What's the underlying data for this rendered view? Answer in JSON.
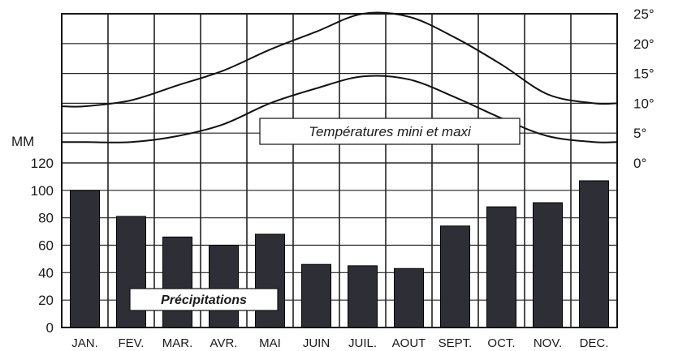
{
  "chart_data": {
    "type": "bar",
    "categories": [
      "JAN.",
      "FEV.",
      "MAR.",
      "AVR.",
      "MAI",
      "JUIN",
      "JUIL.",
      "AOUT",
      "SEPT.",
      "OCT.",
      "NOV.",
      "DEC."
    ],
    "precipitation": {
      "label": "Précipitations",
      "unit": "MM",
      "values": [
        100,
        81,
        66,
        60,
        68,
        46,
        45,
        43,
        74,
        88,
        91,
        107
      ],
      "ylim": [
        0,
        120
      ],
      "ticks": [
        "0",
        "20",
        "40",
        "60",
        "80",
        "100",
        "120"
      ],
      "tick_values": [
        0,
        20,
        40,
        60,
        80,
        100,
        120
      ]
    },
    "temperature": {
      "label": "Températures mini et maxi",
      "ylim": [
        0,
        25
      ],
      "ticks": [
        "0°",
        "5°",
        "10°",
        "15°",
        "20°",
        "25°"
      ],
      "tick_values": [
        0,
        5,
        10,
        15,
        20,
        25
      ],
      "series": [
        {
          "values": [
            9.5,
            10.5,
            13,
            15.5,
            19,
            22,
            25,
            24.5,
            21,
            16.5,
            11.5,
            10
          ]
        },
        {
          "values": [
            3.5,
            3.5,
            4.5,
            6.5,
            10,
            12.5,
            14.5,
            14,
            11,
            7.5,
            4.5,
            3.5
          ]
        }
      ]
    },
    "grid": true,
    "bar_color": "#2e2e36"
  }
}
